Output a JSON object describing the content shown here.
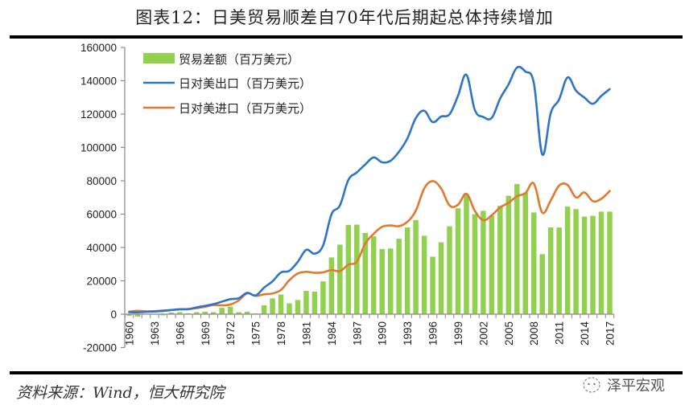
{
  "title": "图表12：日美贸易顺差自70年代后期起总体持续增加",
  "source": "资料来源：Wind，恒大研究院",
  "watermark": "泽平宏观",
  "chart_data": {
    "type": "bar+line",
    "title": "图表12：日美贸易顺差自70年代后期起总体持续增加",
    "xlabel": "",
    "ylabel": "",
    "ylim": [
      -20000,
      160000
    ],
    "yticks": [
      -20000,
      0,
      20000,
      40000,
      60000,
      80000,
      100000,
      120000,
      140000,
      160000
    ],
    "ytick_labels": [
      "-20000",
      "0",
      "20000",
      "40000",
      "60000",
      "80000",
      "100000",
      "120000",
      "140000",
      "160000"
    ],
    "xtick_labels": [
      "1960",
      "1963",
      "1966",
      "1969",
      "1972",
      "1975",
      "1978",
      "1981",
      "1984",
      "1987",
      "1990",
      "1993",
      "1996",
      "1999",
      "2002",
      "2005",
      "2008",
      "2011",
      "2014",
      "2017"
    ],
    "grid": false,
    "legend_position": "top-left",
    "colors": {
      "bar": "#92D050",
      "export": "#2E75C8",
      "import": "#E2792F"
    },
    "x": [
      1960,
      1961,
      1962,
      1963,
      1964,
      1965,
      1966,
      1967,
      1968,
      1969,
      1970,
      1971,
      1972,
      1973,
      1974,
      1975,
      1976,
      1977,
      1978,
      1979,
      1980,
      1981,
      1982,
      1983,
      1984,
      1985,
      1986,
      1987,
      1988,
      1989,
      1990,
      1991,
      1992,
      1993,
      1994,
      1995,
      1996,
      1997,
      1998,
      1999,
      2000,
      2001,
      2002,
      2003,
      2004,
      2005,
      2006,
      2007,
      2008,
      2009,
      2010,
      2011,
      2012,
      2013,
      2014,
      2015,
      2016,
      2017
    ],
    "series": [
      {
        "name": "贸易差额（百万美元）",
        "type": "bar",
        "values": [
          -1000,
          -1500,
          0,
          -300,
          -700,
          1000,
          1200,
          500,
          1200,
          1500,
          1200,
          3800,
          4500,
          1200,
          1500,
          500,
          5300,
          9500,
          11800,
          6500,
          8500,
          14000,
          13500,
          19700,
          34000,
          41700,
          53500,
          53700,
          48700,
          46700,
          39100,
          39400,
          45200,
          52000,
          56500,
          47000,
          34500,
          43100,
          52700,
          63500,
          72000,
          60000,
          62000,
          59000,
          65000,
          71000,
          78000,
          73000,
          61000,
          36000,
          52000,
          52000,
          64500,
          63000,
          58500,
          59000,
          61500,
          61500
        ]
      },
      {
        "name": "日对美出口（百万美元）",
        "type": "line",
        "values": [
          1200,
          1100,
          1400,
          1600,
          1900,
          2500,
          3000,
          3000,
          4100,
          5000,
          6000,
          7500,
          9000,
          9600,
          12800,
          11200,
          15900,
          19700,
          25000,
          26000,
          31400,
          38600,
          36300,
          41200,
          59900,
          65300,
          80500,
          85000,
          89800,
          94000,
          91100,
          92000,
          97400,
          105400,
          117600,
          122000,
          115200,
          118500,
          119900,
          130900,
          143600,
          122500,
          118300,
          117700,
          129300,
          137800,
          147900,
          145500,
          138600,
          95800,
          120500,
          128800,
          142000,
          134100,
          129900,
          126200,
          130900,
          135000
        ]
      },
      {
        "name": "日对美进口（百万美元）",
        "type": "line",
        "values": [
          1500,
          2000,
          1700,
          1800,
          2200,
          2500,
          2800,
          3100,
          3600,
          4400,
          5500,
          5300,
          5800,
          8300,
          12500,
          11000,
          11900,
          12400,
          14500,
          20400,
          24400,
          25400,
          24800,
          25100,
          26500,
          25800,
          29700,
          31500,
          42300,
          48200,
          52400,
          53200,
          52800,
          55400,
          62100,
          75400,
          79800,
          75400,
          65200,
          65600,
          72200,
          62000,
          56400,
          59300,
          64000,
          66800,
          70700,
          72600,
          78400,
          60900,
          68200,
          77100,
          77500,
          70000,
          73000,
          67800,
          69200,
          73900
        ]
      }
    ]
  }
}
